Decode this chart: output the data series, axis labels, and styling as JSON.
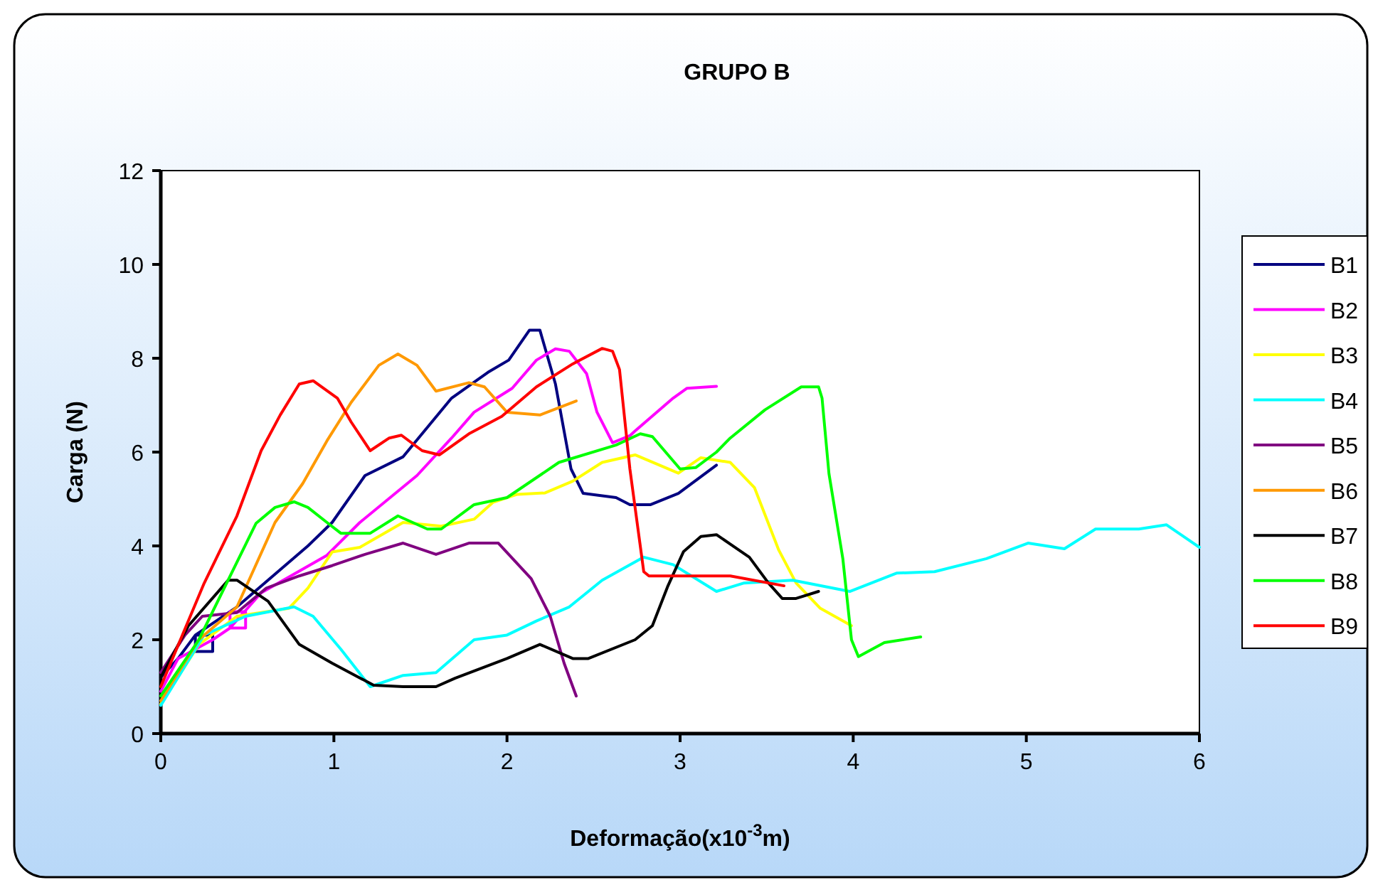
{
  "chart_data": {
    "type": "line",
    "title": "GRUPO B",
    "xlabel": "Deformação(x10$^{-3}$m)",
    "ylabel": "Carga (N)",
    "xlim": [
      0,
      6
    ],
    "xticks": [
      0,
      1,
      2,
      3,
      4,
      5,
      6
    ],
    "ylim": [
      0,
      12
    ],
    "yticks": [
      0,
      2,
      4,
      6,
      8,
      10,
      12
    ],
    "grid": false,
    "legend": "right",
    "marker": "none",
    "line_style": "solid",
    "series": [
      {
        "name": "B1",
        "color": "#000080",
        "x": [
          0,
          0.1,
          0.2,
          0.3,
          0.3,
          0.2,
          0.2,
          0.44,
          0.85,
          0.99,
          1.18,
          1.4,
          1.68,
          1.89,
          2.01,
          2.13,
          2.19,
          2.28,
          2.37,
          2.44,
          2.63,
          2.71,
          2.83,
          2.99,
          3.21
        ],
        "values": [
          1.2,
          1.6,
          2.1,
          2.1,
          1.75,
          1.75,
          2.1,
          2.7,
          4.0,
          4.5,
          5.5,
          5.9,
          7.15,
          7.7,
          7.96,
          8.6,
          8.6,
          7.45,
          5.64,
          5.12,
          5.03,
          4.88,
          4.88,
          5.12,
          5.72
        ]
      },
      {
        "name": "B2",
        "color": "#ff00ff",
        "x": [
          0,
          0.1,
          0.3,
          0.4,
          0.4,
          0.49,
          0.49,
          0.4,
          0.58,
          0.96,
          1.15,
          1.48,
          1.68,
          1.81,
          2.03,
          2.17,
          2.28,
          2.36,
          2.46,
          2.52,
          2.61,
          2.71,
          2.74,
          2.96,
          3.04,
          3.21
        ],
        "values": [
          0.9,
          1.6,
          2.0,
          2.25,
          2.6,
          2.6,
          2.25,
          2.25,
          3.0,
          3.8,
          4.5,
          5.5,
          6.3,
          6.85,
          7.36,
          7.96,
          8.2,
          8.15,
          7.67,
          6.85,
          6.2,
          6.35,
          6.45,
          7.15,
          7.36,
          7.4
        ]
      },
      {
        "name": "B3",
        "color": "#ffff00",
        "x": [
          0,
          0.22,
          0.44,
          0.74,
          0.85,
          0.99,
          1.15,
          1.4,
          1.62,
          1.81,
          1.92,
          2.06,
          2.22,
          2.38,
          2.55,
          2.74,
          2.99,
          3.12,
          3.29,
          3.43,
          3.57,
          3.67,
          3.81,
          3.99
        ],
        "values": [
          0.63,
          1.9,
          2.5,
          2.67,
          3.1,
          3.87,
          3.97,
          4.5,
          4.42,
          4.57,
          4.93,
          5.1,
          5.13,
          5.38,
          5.78,
          5.94,
          5.55,
          5.88,
          5.78,
          5.24,
          3.91,
          3.21,
          2.67,
          2.3
        ]
      },
      {
        "name": "B4",
        "color": "#00ffff",
        "x": [
          0,
          0.25,
          0.49,
          0.77,
          0.88,
          1.04,
          1.21,
          1.4,
          1.59,
          1.81,
          2.0,
          2.17,
          2.36,
          2.55,
          2.79,
          2.96,
          3.21,
          3.37,
          3.65,
          3.98,
          4.25,
          4.47,
          4.77,
          5.01,
          5.22,
          5.4,
          5.65,
          5.81,
          6.0
        ],
        "values": [
          0.6,
          2.1,
          2.5,
          2.7,
          2.5,
          1.8,
          1.0,
          1.24,
          1.3,
          2.0,
          2.1,
          2.4,
          2.7,
          3.27,
          3.76,
          3.6,
          3.03,
          3.21,
          3.27,
          3.03,
          3.42,
          3.45,
          3.73,
          4.06,
          3.94,
          4.36,
          4.36,
          4.45,
          3.97
        ]
      },
      {
        "name": "B5",
        "color": "#800080",
        "x": [
          0,
          0.14,
          0.24,
          0.44,
          0.61,
          0.8,
          0.99,
          1.18,
          1.4,
          1.59,
          1.78,
          1.95,
          2.14,
          2.25,
          2.33,
          2.4
        ],
        "values": [
          1.3,
          2.1,
          2.5,
          2.58,
          3.1,
          3.36,
          3.58,
          3.82,
          4.06,
          3.82,
          4.06,
          4.06,
          3.3,
          2.5,
          1.5,
          0.8
        ]
      },
      {
        "name": "B6",
        "color": "#ff9900",
        "x": [
          0,
          0.22,
          0.44,
          0.66,
          0.82,
          0.96,
          1.1,
          1.26,
          1.37,
          1.48,
          1.59,
          1.78,
          1.87,
          2.0,
          2.19,
          2.4
        ],
        "values": [
          0.7,
          2.0,
          2.7,
          4.5,
          5.33,
          6.24,
          7.06,
          7.85,
          8.09,
          7.85,
          7.3,
          7.48,
          7.39,
          6.85,
          6.79,
          7.09
        ]
      },
      {
        "name": "B7",
        "color": "#000000",
        "x": [
          0,
          0.16,
          0.39,
          0.44,
          0.62,
          0.8,
          0.99,
          1.23,
          1.4,
          1.59,
          1.7,
          2.0,
          2.19,
          2.38,
          2.47,
          2.74,
          2.84,
          2.93,
          3.02,
          3.12,
          3.21,
          3.4,
          3.51,
          3.59,
          3.67,
          3.8
        ],
        "values": [
          1.2,
          2.3,
          3.27,
          3.27,
          2.82,
          1.9,
          1.5,
          1.03,
          1.0,
          1.0,
          1.18,
          1.6,
          1.9,
          1.6,
          1.6,
          2.0,
          2.3,
          3.15,
          3.88,
          4.2,
          4.24,
          3.76,
          3.21,
          2.88,
          2.88,
          3.03
        ]
      },
      {
        "name": "B8",
        "color": "#00ff00",
        "x": [
          0,
          0.22,
          0.55,
          0.66,
          0.77,
          0.85,
          0.96,
          1.04,
          1.21,
          1.37,
          1.54,
          1.62,
          1.81,
          2.0,
          2.3,
          2.63,
          2.77,
          2.84,
          3.0,
          3.09,
          3.21,
          3.29,
          3.49,
          3.7,
          3.8,
          3.82,
          3.86,
          3.94,
          3.99,
          4.03,
          4.18,
          4.39
        ],
        "values": [
          0.8,
          2.0,
          4.48,
          4.82,
          4.94,
          4.82,
          4.5,
          4.27,
          4.27,
          4.64,
          4.36,
          4.36,
          4.88,
          5.03,
          5.78,
          6.15,
          6.39,
          6.33,
          5.64,
          5.67,
          6.0,
          6.3,
          6.9,
          7.39,
          7.39,
          7.15,
          5.54,
          3.73,
          2.0,
          1.64,
          1.94,
          2.06
        ]
      },
      {
        "name": "B9",
        "color": "#ff0000",
        "x": [
          0,
          0.25,
          0.44,
          0.58,
          0.69,
          0.8,
          0.88,
          1.02,
          1.1,
          1.21,
          1.32,
          1.39,
          1.51,
          1.61,
          1.78,
          1.97,
          2.17,
          2.38,
          2.55,
          2.61,
          2.65,
          2.71,
          2.79,
          2.82,
          2.88,
          3.29,
          3.6
        ],
        "values": [
          1.0,
          3.2,
          4.64,
          6.03,
          6.79,
          7.45,
          7.52,
          7.15,
          6.64,
          6.03,
          6.3,
          6.36,
          6.03,
          5.94,
          6.39,
          6.76,
          7.39,
          7.88,
          8.21,
          8.15,
          7.76,
          5.64,
          3.45,
          3.36,
          3.36,
          3.36,
          3.15
        ]
      }
    ]
  }
}
